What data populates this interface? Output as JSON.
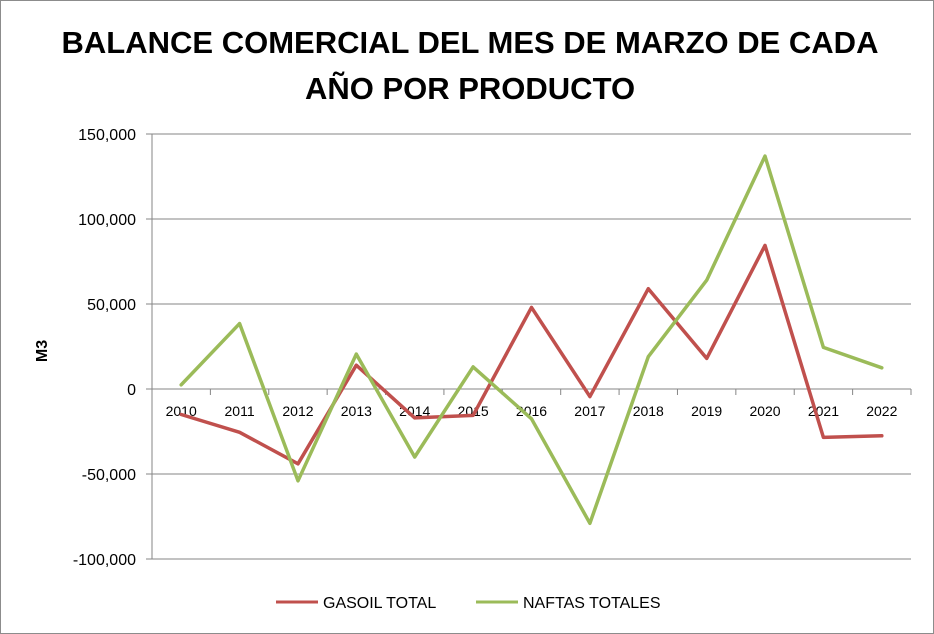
{
  "chart_data": {
    "type": "line",
    "title": "BALANCE COMERCIAL DEL MES DE MARZO DE CADA AÑO POR PRODUCTO",
    "ylabel": "M3",
    "xlabel": "",
    "x": [
      "2010",
      "2011",
      "2012",
      "2013",
      "2014",
      "2015",
      "2016",
      "2017",
      "2018",
      "2019",
      "2020",
      "2021",
      "2022"
    ],
    "ylim": [
      -100000,
      150000
    ],
    "yticks": [
      150000,
      100000,
      50000,
      0,
      -50000,
      -100000
    ],
    "ytick_labels": [
      "150,000",
      "100,000",
      "50,000",
      "0",
      "-50,000",
      "-100,000"
    ],
    "grid": true,
    "legend_position": "bottom",
    "series": [
      {
        "name": "GASOIL TOTAL",
        "color": "#c0504d",
        "values": [
          -15000,
          -25500,
          -44000,
          14000,
          -17000,
          -15500,
          48000,
          -4500,
          59000,
          18000,
          84500,
          -28500,
          -27500
        ]
      },
      {
        "name": "NAFTAS TOTALES",
        "color": "#9bbb59",
        "values": [
          2500,
          38500,
          -54000,
          20500,
          -40000,
          13000,
          -17500,
          -79000,
          19000,
          64000,
          137000,
          24500,
          12500
        ]
      }
    ]
  }
}
